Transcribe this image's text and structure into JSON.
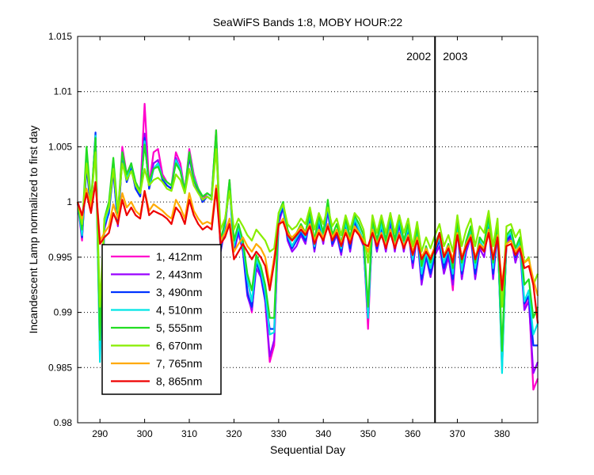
{
  "chart_data": {
    "type": "line",
    "title": "SeaWiFS Bands 1:8, MOBY HOUR:22",
    "xlabel": "Sequential Day",
    "ylabel": "Incandescent Lamp normalized to first day",
    "xlim": [
      285,
      388
    ],
    "ylim": [
      0.98,
      1.015
    ],
    "xticks": [
      290,
      300,
      310,
      320,
      330,
      340,
      350,
      360,
      370,
      380
    ],
    "xtick_labels": [
      "290",
      "300",
      "310",
      "320",
      "330",
      "340",
      "350",
      "360",
      "370",
      "380"
    ],
    "yticks": [
      0.98,
      0.985,
      0.99,
      0.995,
      1.0,
      1.005,
      1.01,
      1.015
    ],
    "ytick_labels": [
      "0.98",
      "0.985",
      "0.99",
      "0.995",
      "1",
      "1.005",
      "1.01",
      "1.015"
    ],
    "grid": "y-dotted",
    "legend_position": "bottom-left",
    "year_divider": {
      "x": 365,
      "left_label": "2002",
      "right_label": "2003"
    },
    "x": [
      285,
      286,
      287,
      288,
      289,
      290,
      291,
      292,
      293,
      294,
      295,
      296,
      297,
      298,
      299,
      300,
      301,
      302,
      303,
      304,
      305,
      306,
      307,
      308,
      309,
      310,
      311,
      312,
      313,
      314,
      315,
      316,
      317,
      318,
      319,
      320,
      321,
      322,
      323,
      324,
      325,
      326,
      327,
      328,
      329,
      330,
      331,
      332,
      333,
      334,
      335,
      336,
      337,
      338,
      339,
      340,
      341,
      342,
      343,
      344,
      345,
      346,
      347,
      348,
      349,
      350,
      351,
      352,
      353,
      354,
      355,
      356,
      357,
      358,
      359,
      360,
      361,
      362,
      363,
      364,
      365,
      366,
      367,
      368,
      369,
      370,
      371,
      372,
      373,
      374,
      375,
      376,
      377,
      378,
      379,
      380,
      381,
      382,
      383,
      384,
      385,
      386,
      387,
      388
    ],
    "series": [
      {
        "name": "1, 412nm",
        "color": "#ff00cc",
        "values": [
          1.0,
          0.9965,
          1.0038,
          0.9998,
          1.0058,
          0.986,
          0.998,
          0.9995,
          1.0038,
          0.998,
          1.005,
          1.0025,
          1.0035,
          1.0015,
          1.0008,
          1.0089,
          1.0015,
          1.0045,
          1.0048,
          1.0025,
          1.0018,
          1.0015,
          1.0045,
          1.0035,
          1.001,
          1.0048,
          1.0025,
          1.0012,
          1.0002,
          1.0008,
          1.0005,
          1.0065,
          0.9955,
          0.9975,
          1.002,
          0.9955,
          0.9975,
          0.996,
          0.992,
          0.99,
          0.9945,
          0.9935,
          0.991,
          0.9855,
          0.987,
          0.9985,
          0.9998,
          0.997,
          0.9958,
          0.9965,
          0.9975,
          0.9968,
          0.999,
          0.996,
          0.9985,
          0.9968,
          0.9998,
          0.9965,
          0.9975,
          0.9958,
          0.9982,
          0.996,
          0.9985,
          0.9975,
          0.9965,
          0.9885,
          0.9982,
          0.9958,
          0.998,
          0.9958,
          0.9988,
          0.996,
          0.9985,
          0.9958,
          0.9978,
          0.9945,
          0.9975,
          0.993,
          0.9955,
          0.9935,
          0.9955,
          0.9965,
          0.994,
          0.9955,
          0.992,
          0.9978,
          0.993,
          0.9958,
          0.9972,
          0.9935,
          0.9962,
          0.9955,
          0.9985,
          0.9935,
          0.9978,
          0.9848,
          0.9965,
          0.9972,
          0.995,
          0.9965,
          0.9905,
          0.9915,
          0.983,
          0.984
        ]
      },
      {
        "name": "2, 443nm",
        "color": "#9900ff",
        "values": [
          1.0,
          0.9968,
          1.0035,
          0.9995,
          1.0055,
          0.9875,
          0.9975,
          0.9992,
          1.003,
          0.9978,
          1.0042,
          1.002,
          1.0032,
          1.0012,
          1.0005,
          1.0062,
          1.0012,
          1.0035,
          1.0038,
          1.002,
          1.0015,
          1.0012,
          1.004,
          1.003,
          1.0008,
          1.004,
          1.002,
          1.001,
          1.0,
          1.0005,
          1.0002,
          1.0058,
          0.9958,
          0.9978,
          1.0015,
          0.9955,
          0.9972,
          0.9955,
          0.9915,
          0.9902,
          0.994,
          0.9932,
          0.991,
          0.986,
          0.9875,
          0.998,
          0.9995,
          0.9965,
          0.9955,
          0.996,
          0.997,
          0.9962,
          0.9985,
          0.9955,
          0.998,
          0.9962,
          0.9992,
          0.996,
          0.997,
          0.9952,
          0.9978,
          0.9955,
          0.998,
          0.997,
          0.996,
          0.9895,
          0.9978,
          0.9955,
          0.9975,
          0.9955,
          0.9982,
          0.9955,
          0.998,
          0.9955,
          0.9975,
          0.994,
          0.997,
          0.9925,
          0.995,
          0.9932,
          0.9952,
          0.996,
          0.9935,
          0.995,
          0.9925,
          0.9975,
          0.993,
          0.9955,
          0.9968,
          0.993,
          0.9958,
          0.995,
          0.998,
          0.993,
          0.9972,
          0.986,
          0.9962,
          0.9968,
          0.9945,
          0.996,
          0.9902,
          0.991,
          0.9845,
          0.9855
        ]
      },
      {
        "name": "3, 490nm",
        "color": "#0033ff",
        "values": [
          1.0,
          0.9968,
          1.0032,
          0.9992,
          1.0063,
          0.988,
          0.9978,
          0.999,
          1.0028,
          0.998,
          1.004,
          1.0018,
          1.003,
          1.0012,
          1.0005,
          1.0058,
          1.0012,
          1.003,
          1.0035,
          1.002,
          1.0015,
          1.0012,
          1.0038,
          1.0028,
          1.001,
          1.0042,
          1.002,
          1.001,
          1.0,
          1.0005,
          1.0002,
          1.006,
          0.9955,
          0.998,
          1.0015,
          0.9958,
          0.9975,
          0.9958,
          0.9918,
          0.9905,
          0.9945,
          0.9935,
          0.9912,
          0.9885,
          0.9885,
          0.9985,
          0.9995,
          0.9968,
          0.9958,
          0.9965,
          0.9972,
          0.9965,
          0.9988,
          0.9958,
          0.9982,
          0.9965,
          0.9995,
          0.9962,
          0.9972,
          0.9955,
          0.998,
          0.9958,
          0.9982,
          0.9972,
          0.9962,
          0.9895,
          0.998,
          0.9958,
          0.9978,
          0.9958,
          0.9985,
          0.9958,
          0.9982,
          0.9958,
          0.9975,
          0.9945,
          0.9972,
          0.993,
          0.9952,
          0.9935,
          0.9955,
          0.9965,
          0.994,
          0.9955,
          0.993,
          0.998,
          0.9935,
          0.996,
          0.9972,
          0.9935,
          0.9962,
          0.9955,
          0.9982,
          0.9935,
          0.9975,
          0.9855,
          0.9965,
          0.997,
          0.995,
          0.9962,
          0.9908,
          0.9915,
          0.987,
          0.987
        ]
      },
      {
        "name": "4, 510nm",
        "color": "#00e5e5",
        "values": [
          1.0,
          0.997,
          1.0045,
          0.9995,
          1.006,
          0.9855,
          0.998,
          0.9995,
          1.0035,
          0.9985,
          1.0045,
          1.0022,
          1.0035,
          1.0015,
          1.0008,
          1.0055,
          1.0015,
          1.003,
          1.0035,
          1.0022,
          1.0018,
          1.0015,
          1.0038,
          1.003,
          1.001,
          1.0045,
          1.0022,
          1.0012,
          1.0005,
          1.0008,
          1.0005,
          1.006,
          0.996,
          0.998,
          1.0015,
          0.996,
          0.9978,
          0.996,
          0.993,
          0.991,
          0.9948,
          0.9938,
          0.9918,
          0.988,
          0.9882,
          0.9988,
          0.9998,
          0.997,
          0.996,
          0.9968,
          0.9975,
          0.9968,
          0.999,
          0.996,
          0.9985,
          0.9968,
          0.9998,
          0.9965,
          0.9975,
          0.9958,
          0.9982,
          0.9962,
          0.9985,
          0.9975,
          0.9965,
          0.9895,
          0.9982,
          0.996,
          0.998,
          0.996,
          0.9988,
          0.996,
          0.9985,
          0.996,
          0.9978,
          0.9948,
          0.9975,
          0.9935,
          0.9955,
          0.994,
          0.9958,
          0.9968,
          0.9945,
          0.9958,
          0.9935,
          0.9982,
          0.9938,
          0.9962,
          0.9975,
          0.994,
          0.9965,
          0.9958,
          0.9985,
          0.994,
          0.9978,
          0.9845,
          0.9968,
          0.9972,
          0.9952,
          0.9965,
          0.991,
          0.992,
          0.988,
          0.989
        ]
      },
      {
        "name": "5, 555nm",
        "color": "#22dd22",
        "values": [
          1.0,
          0.9975,
          1.005,
          1.0,
          1.0058,
          0.9875,
          0.9985,
          1.0,
          1.004,
          0.999,
          1.0045,
          1.0025,
          1.0035,
          1.0018,
          1.001,
          1.0052,
          1.0018,
          1.003,
          1.0032,
          1.0022,
          1.0018,
          1.0015,
          1.0035,
          1.0028,
          1.001,
          1.0045,
          1.002,
          1.0012,
          1.0005,
          1.0008,
          1.0005,
          1.0065,
          0.9965,
          0.9982,
          1.002,
          0.9965,
          0.998,
          0.9965,
          0.9935,
          0.992,
          0.9952,
          0.9942,
          0.9925,
          0.9895,
          0.9895,
          0.999,
          1.0,
          0.9975,
          0.9965,
          0.9972,
          0.998,
          0.9972,
          0.9992,
          0.9965,
          0.9988,
          0.9972,
          1.0002,
          0.997,
          0.998,
          0.9962,
          0.9985,
          0.9968,
          0.9988,
          0.998,
          0.997,
          0.9905,
          0.9985,
          0.9965,
          0.9985,
          0.9965,
          0.999,
          0.9965,
          0.9988,
          0.9965,
          0.998,
          0.9952,
          0.9978,
          0.9942,
          0.996,
          0.9945,
          0.9962,
          0.9972,
          0.995,
          0.9962,
          0.994,
          0.9985,
          0.9945,
          0.9965,
          0.9978,
          0.9945,
          0.9968,
          0.9962,
          0.9988,
          0.9945,
          0.998,
          0.9865,
          0.997,
          0.9975,
          0.9958,
          0.9968,
          0.9925,
          0.993,
          0.9895,
          0.9905
        ]
      },
      {
        "name": "6, 670nm",
        "color": "#88ee00",
        "values": [
          1.0,
          0.998,
          1.0035,
          1.0,
          1.0045,
          0.9905,
          0.9985,
          0.9995,
          1.003,
          0.9992,
          1.0035,
          1.002,
          1.0028,
          1.0015,
          1.0008,
          1.003,
          1.0015,
          1.002,
          1.0022,
          1.0018,
          1.0012,
          1.001,
          1.0025,
          1.002,
          1.0008,
          1.003,
          1.0015,
          1.0008,
          1.0002,
          1.0005,
          1.0002,
          1.0048,
          0.9975,
          0.9985,
          1.001,
          0.9975,
          0.9985,
          0.9978,
          0.997,
          0.9965,
          0.9975,
          0.997,
          0.9965,
          0.9955,
          0.9958,
          0.999,
          0.9998,
          0.998,
          0.9975,
          0.9978,
          0.9985,
          0.998,
          0.9995,
          0.9975,
          0.999,
          0.998,
          0.9995,
          0.9978,
          0.9985,
          0.997,
          0.9988,
          0.9975,
          0.999,
          0.9985,
          0.9975,
          0.9945,
          0.9988,
          0.9972,
          0.9988,
          0.9972,
          0.999,
          0.9972,
          0.9988,
          0.9972,
          0.9985,
          0.996,
          0.9982,
          0.9955,
          0.9968,
          0.9958,
          0.997,
          0.998,
          0.996,
          0.997,
          0.9955,
          0.9988,
          0.996,
          0.9975,
          0.9985,
          0.996,
          0.9978,
          0.9972,
          0.9992,
          0.996,
          0.9985,
          0.9905,
          0.9978,
          0.998,
          0.9968,
          0.9975,
          0.9945,
          0.995,
          0.9925,
          0.9935
        ]
      },
      {
        "name": "7, 765nm",
        "color": "#ffaa00",
        "values": [
          1.0,
          0.9985,
          1.0012,
          0.9995,
          1.0018,
          0.9965,
          0.9972,
          0.9978,
          0.9998,
          0.9985,
          1.0008,
          0.9995,
          1.0,
          0.9992,
          0.9988,
          1.001,
          0.9992,
          0.9998,
          0.9995,
          0.9992,
          0.9988,
          0.9985,
          1.0002,
          0.9995,
          0.9985,
          1.0008,
          0.9992,
          0.9985,
          0.998,
          0.9982,
          0.998,
          1.0015,
          0.9965,
          0.9972,
          0.9985,
          0.9955,
          0.9962,
          0.9968,
          0.996,
          0.9955,
          0.9962,
          0.9958,
          0.995,
          0.9925,
          0.995,
          0.9978,
          0.9985,
          0.9972,
          0.9968,
          0.9972,
          0.9978,
          0.9972,
          0.998,
          0.9965,
          0.9975,
          0.9968,
          0.998,
          0.9968,
          0.9975,
          0.9962,
          0.9975,
          0.9965,
          0.9978,
          0.9972,
          0.9965,
          0.9955,
          0.9975,
          0.9962,
          0.9972,
          0.996,
          0.9975,
          0.996,
          0.9972,
          0.996,
          0.997,
          0.9955,
          0.9968,
          0.995,
          0.9958,
          0.995,
          0.996,
          0.997,
          0.9952,
          0.996,
          0.9948,
          0.9972,
          0.995,
          0.9962,
          0.997,
          0.995,
          0.9962,
          0.9958,
          0.9975,
          0.995,
          0.997,
          0.9925,
          0.9962,
          0.9965,
          0.9955,
          0.996,
          0.9945,
          0.9948,
          0.993,
          0.9915
        ]
      },
      {
        "name": "8, 865nm",
        "color": "#ee0000",
        "values": [
          1.0,
          0.9988,
          1.0008,
          0.999,
          1.0018,
          0.9962,
          0.9968,
          0.9972,
          0.999,
          0.998,
          1.0002,
          0.9988,
          0.9995,
          0.9988,
          0.9985,
          1.001,
          0.9988,
          0.9992,
          0.999,
          0.9988,
          0.9985,
          0.998,
          0.9995,
          0.999,
          0.998,
          1.0002,
          0.9988,
          0.998,
          0.9975,
          0.9978,
          0.9975,
          1.0012,
          0.9962,
          0.9968,
          0.998,
          0.9948,
          0.9955,
          0.9962,
          0.9955,
          0.9948,
          0.9955,
          0.995,
          0.9942,
          0.992,
          0.9945,
          0.998,
          0.9982,
          0.997,
          0.9965,
          0.997,
          0.9975,
          0.997,
          0.9978,
          0.9962,
          0.9972,
          0.9965,
          0.9978,
          0.9965,
          0.9972,
          0.996,
          0.9972,
          0.9962,
          0.9975,
          0.997,
          0.9962,
          0.996,
          0.9972,
          0.996,
          0.997,
          0.9958,
          0.9972,
          0.9958,
          0.997,
          0.9958,
          0.9968,
          0.9952,
          0.9965,
          0.9948,
          0.9955,
          0.9948,
          0.9958,
          0.9972,
          0.995,
          0.9958,
          0.9945,
          0.997,
          0.9948,
          0.996,
          0.9968,
          0.9948,
          0.996,
          0.9955,
          0.9972,
          0.9948,
          0.9968,
          0.992,
          0.996,
          0.9962,
          0.9952,
          0.9958,
          0.994,
          0.9942,
          0.9925,
          0.989
        ]
      }
    ]
  }
}
